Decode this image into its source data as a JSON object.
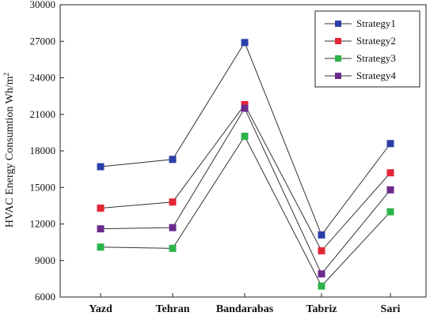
{
  "chart_data": {
    "type": "line",
    "title": "",
    "xlabel": "",
    "ylabel": "HVAC Energy Consumtion Wh/m",
    "ylabel_superscript": "2",
    "categories": [
      "Yazd",
      "Tehran",
      "Bandarabas",
      "Tabriz",
      "Sari"
    ],
    "ylim": [
      6000,
      30000
    ],
    "yticks": [
      6000,
      9000,
      12000,
      15000,
      18000,
      21000,
      24000,
      27000,
      30000
    ],
    "grid": false,
    "legend_position": "top-right",
    "series": [
      {
        "name": "Strategy1",
        "color": "#2b3fa8",
        "values": [
          16700,
          17300,
          26900,
          11100,
          18600
        ]
      },
      {
        "name": "Strategy2",
        "color": "#e32636",
        "values": [
          13300,
          13800,
          21800,
          9800,
          16200
        ]
      },
      {
        "name": "Strategy3",
        "color": "#2bb34a",
        "values": [
          10100,
          10000,
          19200,
          6900,
          13000
        ]
      },
      {
        "name": "Strategy4",
        "color": "#6b2a8c",
        "values": [
          11600,
          11700,
          21500,
          7900,
          14800
        ]
      }
    ]
  }
}
